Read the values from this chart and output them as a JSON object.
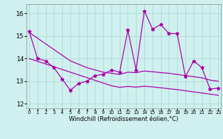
{
  "xlabel": "Windchill (Refroidissement éolien,°C)",
  "background_color": "#cff0ee",
  "grid_color": "#b0ddd8",
  "line_color": "#aa00aa",
  "hours": [
    0,
    1,
    2,
    3,
    4,
    5,
    6,
    7,
    8,
    9,
    10,
    11,
    12,
    13,
    14,
    15,
    16,
    17,
    18,
    19,
    20,
    21,
    22,
    23
  ],
  "temp_line": [
    15.2,
    14.0,
    13.9,
    13.6,
    13.1,
    12.6,
    12.9,
    13.0,
    13.25,
    13.3,
    13.5,
    13.4,
    15.25,
    13.5,
    16.1,
    15.3,
    15.5,
    15.1,
    15.1,
    13.2,
    13.9,
    13.6,
    12.65,
    12.7
  ],
  "line2": [
    15.15,
    14.9,
    14.65,
    14.4,
    14.15,
    13.9,
    13.75,
    13.6,
    13.5,
    13.4,
    13.35,
    13.3,
    13.4,
    13.38,
    13.45,
    13.42,
    13.38,
    13.35,
    13.3,
    13.25,
    13.2,
    13.15,
    13.05,
    13.0
  ],
  "line3": [
    14.0,
    13.88,
    13.76,
    13.64,
    13.52,
    13.4,
    13.28,
    13.16,
    13.04,
    12.92,
    12.8,
    12.73,
    12.77,
    12.74,
    12.78,
    12.75,
    12.71,
    12.67,
    12.63,
    12.58,
    12.53,
    12.48,
    12.43,
    12.38
  ],
  "ylim": [
    11.8,
    16.4
  ],
  "yticks": [
    12,
    13,
    14,
    15,
    16
  ],
  "xlim": [
    -0.3,
    23.3
  ]
}
